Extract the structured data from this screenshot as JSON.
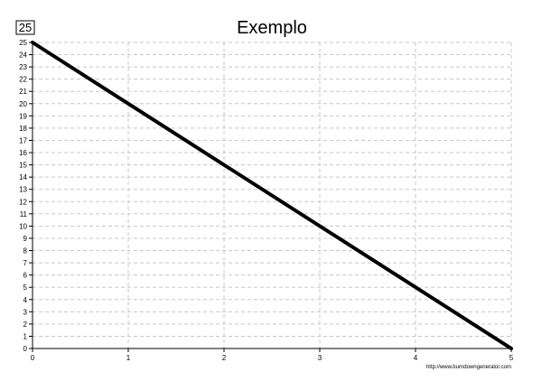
{
  "chart_data": {
    "type": "line",
    "title": "Exemplo",
    "xlabel": "",
    "ylabel": "",
    "x_ticks": [
      0,
      1,
      2,
      3,
      4,
      5
    ],
    "y_ticks": [
      0,
      1,
      2,
      3,
      4,
      5,
      6,
      7,
      8,
      9,
      10,
      11,
      12,
      13,
      14,
      15,
      16,
      17,
      18,
      19,
      20,
      21,
      22,
      23,
      24,
      25
    ],
    "xlim": [
      0,
      5
    ],
    "ylim": [
      0,
      25
    ],
    "grid": true,
    "series": [
      {
        "x": [
          0,
          5
        ],
        "values": [
          25,
          0
        ]
      }
    ]
  },
  "badge": "25",
  "footer_text": "http://www.burndowngenerator.com",
  "colors": {
    "line": "#000000",
    "grid": "#c8c8c8",
    "axis": "#000000"
  }
}
